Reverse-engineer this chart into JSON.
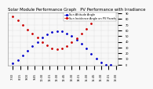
{
  "title": "Solar Module Performance Graph",
  "title2": "PV Performance with Irradiance",
  "series1_label": "Sun Altitude Angle",
  "series2_label": "Sun Incidence Angle on PV Panels",
  "series1_color": "#0000cc",
  "series2_color": "#cc0000",
  "x": [
    7.5,
    8.0,
    8.5,
    9.0,
    9.5,
    10.0,
    10.5,
    11.0,
    11.5,
    12.0,
    12.5,
    13.0,
    13.5,
    14.0,
    14.5,
    15.0,
    15.5,
    16.0,
    16.5,
    17.0,
    17.5
  ],
  "y_altitude": [
    2,
    8,
    16,
    24,
    32,
    40,
    47,
    53,
    57,
    59,
    58,
    55,
    50,
    44,
    36,
    28,
    19,
    11,
    4,
    0,
    0
  ],
  "y_incidence": [
    85,
    78,
    70,
    62,
    54,
    47,
    40,
    34,
    29,
    27,
    29,
    33,
    39,
    46,
    54,
    63,
    72,
    80,
    87,
    90,
    90
  ],
  "xlim": [
    7.0,
    18.2
  ],
  "ylim": [
    -2,
    92
  ],
  "yticks": [
    0,
    10,
    20,
    30,
    40,
    50,
    60,
    70,
    80,
    90
  ],
  "xtick_labels": [
    "7:30",
    "8:15",
    "9:00",
    "9:45",
    "10:30",
    "11:15",
    "12:00",
    "12:45",
    "13:30",
    "14:15",
    "15:00",
    "15:45",
    "16:30",
    "17:15",
    "18:00"
  ],
  "xtick_positions": [
    7.5,
    8.25,
    9.0,
    9.75,
    10.5,
    11.25,
    12.0,
    12.75,
    13.5,
    14.25,
    15.0,
    15.75,
    16.5,
    17.25,
    18.0
  ],
  "bg_color": "#f8f8f8",
  "grid_color": "#bbbbbb",
  "title_fontsize": 3.8,
  "tick_fontsize": 2.5,
  "legend_fontsize": 2.5,
  "markersize": 2.0,
  "linewidth": 0
}
